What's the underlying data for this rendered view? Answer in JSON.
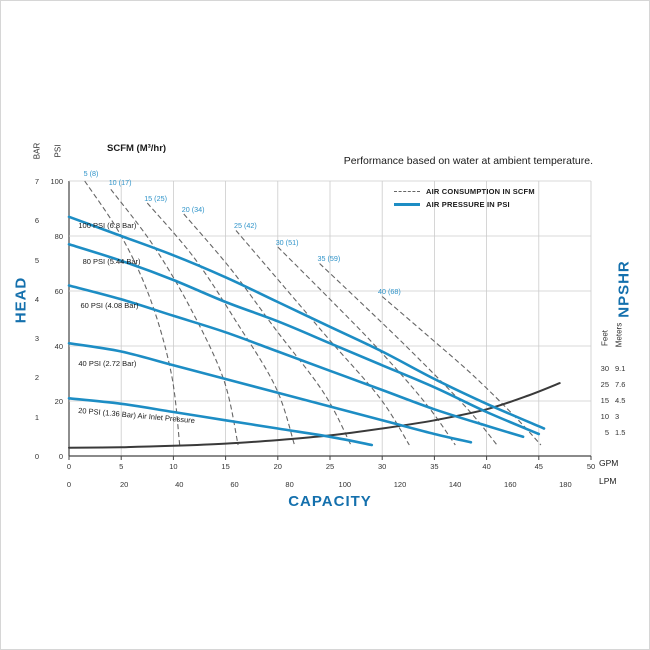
{
  "header": {
    "scfm_units_label": "SCFM (M³/hr)",
    "title": "Performance based on water at ambient temperature."
  },
  "legend": {
    "items": [
      {
        "label": "AIR CONSUMPTION IN SCFM",
        "style": "dashed"
      },
      {
        "label": "AIR PRESSURE IN PSI",
        "style": "solid"
      }
    ]
  },
  "colors": {
    "curve_blue": "#1d8dc4",
    "axis_label_blue": "#1470ad",
    "dashed_gray": "#666666",
    "npshr_dark": "#3a3a3a",
    "grid_gray": "#cccccc",
    "axis_dark": "#444444"
  },
  "axes": {
    "left": {
      "title": "HEAD",
      "bar_label": "BAR",
      "psi_label": "PSI",
      "bar_ticks": [
        "7",
        "6",
        "5",
        "4",
        "3",
        "2",
        "1",
        "0"
      ],
      "psi_ticks": [
        "100",
        "80",
        "60",
        "40",
        "20",
        "0"
      ]
    },
    "bottom": {
      "title": "CAPACITY",
      "gpm_label": "GPM",
      "lpm_label": "LPM",
      "gpm_ticks": [
        "0",
        "5",
        "10",
        "15",
        "20",
        "25",
        "30",
        "35",
        "40",
        "45",
        "50"
      ],
      "lpm_ticks": [
        "0",
        "20",
        "40",
        "60",
        "80",
        "100",
        "120",
        "140",
        "160",
        "180"
      ]
    },
    "right": {
      "title": "NPSHR",
      "feet_label": "Feet",
      "meters_label": "Meters",
      "rows": [
        {
          "feet": "30",
          "meters": "9.1"
        },
        {
          "feet": "25",
          "meters": "7.6"
        },
        {
          "feet": "15",
          "meters": "4.5"
        },
        {
          "feet": "10",
          "meters": "3"
        },
        {
          "feet": "5",
          "meters": "1.5"
        }
      ]
    }
  },
  "chart_data": {
    "type": "line",
    "title": "Performance based on water at ambient temperature.",
    "xlabel": "CAPACITY",
    "ylabel": "HEAD",
    "y2label": "NPSHR",
    "legend": [
      "AIR CONSUMPTION IN SCFM",
      "AIR PRESSURE IN PSI"
    ],
    "legend_position": "top-right",
    "grid": true,
    "x_units": {
      "primary": "GPM",
      "secondary": "LPM",
      "lpm_per_gpm": 3.7854
    },
    "y_units": {
      "primary": "PSI",
      "secondary": "BAR"
    },
    "xlim_gpm": [
      0,
      50
    ],
    "ylim_psi": [
      0,
      100
    ],
    "x_ticks_gpm": [
      0,
      5,
      10,
      15,
      20,
      25,
      30,
      35,
      40,
      45,
      50
    ],
    "x_ticks_lpm": [
      0,
      20,
      40,
      60,
      80,
      100,
      120,
      140,
      160,
      180
    ],
    "y_ticks_psi": [
      100,
      80,
      60,
      40,
      20,
      0
    ],
    "y_ticks_bar": [
      7,
      6,
      5,
      4,
      3,
      2,
      1,
      0
    ],
    "npshr_ticks_feet": [
      30,
      25,
      15,
      10,
      5
    ],
    "npshr_ticks_meters": [
      9.1,
      7.6,
      4.5,
      3,
      1.5
    ],
    "pressure_curves": [
      {
        "label": "100 PSI (6.8 Bar)",
        "label_at": [
          0.9,
          84
        ],
        "points": [
          [
            0,
            87
          ],
          [
            5,
            80
          ],
          [
            10,
            73
          ],
          [
            15,
            65
          ],
          [
            20,
            56
          ],
          [
            25,
            47
          ],
          [
            30,
            38
          ],
          [
            35,
            28
          ],
          [
            40,
            19
          ],
          [
            45.5,
            10
          ]
        ]
      },
      {
        "label": "80 PSI (5.44 Bar)",
        "label_at": [
          1.3,
          71
        ],
        "points": [
          [
            0,
            77
          ],
          [
            5,
            71
          ],
          [
            10,
            64
          ],
          [
            15,
            56
          ],
          [
            20,
            49
          ],
          [
            25,
            41
          ],
          [
            30,
            33
          ],
          [
            35,
            25
          ],
          [
            40,
            16
          ],
          [
            45,
            8
          ]
        ]
      },
      {
        "label": "60 PSI (4.08 Bar)",
        "label_at": [
          1.1,
          55
        ],
        "points": [
          [
            0,
            62
          ],
          [
            5,
            57
          ],
          [
            10,
            51
          ],
          [
            15,
            45
          ],
          [
            20,
            38
          ],
          [
            25,
            31
          ],
          [
            30,
            24
          ],
          [
            35,
            17
          ],
          [
            40,
            11
          ],
          [
            43.5,
            7
          ]
        ]
      },
      {
        "label": "40 PSI (2.72 Bar)",
        "label_at": [
          0.9,
          34
        ],
        "points": [
          [
            0,
            41
          ],
          [
            5,
            38
          ],
          [
            10,
            33
          ],
          [
            15,
            28
          ],
          [
            20,
            23
          ],
          [
            25,
            18
          ],
          [
            30,
            13
          ],
          [
            35,
            8
          ],
          [
            38.5,
            5
          ]
        ]
      },
      {
        "label": "20 PSI (1.36 Bar) Air Inlet Pressure",
        "label_at": [
          0.9,
          15
        ],
        "label_rotation_deg": 5,
        "points": [
          [
            0,
            21
          ],
          [
            5,
            19
          ],
          [
            10,
            16
          ],
          [
            15,
            13
          ],
          [
            20,
            10
          ],
          [
            25,
            7
          ],
          [
            29,
            4
          ]
        ]
      }
    ],
    "air_consumption_curves": [
      {
        "label": "5 (8)",
        "label_at": [
          1.4,
          103
        ],
        "points": [
          [
            1.5,
            100
          ],
          [
            5,
            80
          ],
          [
            7.8,
            57
          ],
          [
            9.8,
            30
          ],
          [
            10.6,
            4
          ]
        ]
      },
      {
        "label": "10 (17)",
        "label_at": [
          3.8,
          99.5
        ],
        "points": [
          [
            4,
            97
          ],
          [
            8,
            77
          ],
          [
            11.6,
            54
          ],
          [
            14.8,
            28
          ],
          [
            16.2,
            4
          ]
        ]
      },
      {
        "label": "15 (25)",
        "label_at": [
          7.2,
          94
        ],
        "points": [
          [
            7.5,
            92
          ],
          [
            12,
            72
          ],
          [
            16,
            49
          ],
          [
            19.8,
            25
          ],
          [
            21.6,
            4
          ]
        ]
      },
      {
        "label": "20 (34)",
        "label_at": [
          10.8,
          90
        ],
        "points": [
          [
            11,
            88
          ],
          [
            15.5,
            68
          ],
          [
            19.8,
            46
          ],
          [
            24.4,
            23
          ],
          [
            27,
            4
          ]
        ]
      },
      {
        "label": "25 (42)",
        "label_at": [
          15.8,
          84
        ],
        "points": [
          [
            16,
            82
          ],
          [
            20.5,
            62
          ],
          [
            25,
            42
          ],
          [
            29.8,
            21
          ],
          [
            32.6,
            4
          ]
        ]
      },
      {
        "label": "30 (51)",
        "label_at": [
          19.8,
          78
        ],
        "points": [
          [
            20,
            76
          ],
          [
            25,
            57
          ],
          [
            29.6,
            39
          ],
          [
            34.2,
            19
          ],
          [
            37,
            4
          ]
        ]
      },
      {
        "label": "35 (59)",
        "label_at": [
          23.8,
          72
        ],
        "points": [
          [
            24,
            70
          ],
          [
            29,
            52
          ],
          [
            33.6,
            35
          ],
          [
            38.2,
            17
          ],
          [
            41,
            4
          ]
        ]
      },
      {
        "label": "40 (68)",
        "label_at": [
          29.6,
          60
        ],
        "points": [
          [
            30,
            58
          ],
          [
            34.6,
            43
          ],
          [
            38.8,
            29
          ],
          [
            42.8,
            14
          ],
          [
            45.2,
            4
          ]
        ]
      }
    ],
    "npshr_curve": {
      "points_gpm_psi": [
        [
          0,
          3
        ],
        [
          5,
          3.2
        ],
        [
          10,
          3.7
        ],
        [
          15,
          4.5
        ],
        [
          20,
          5.8
        ],
        [
          25,
          7.5
        ],
        [
          30,
          10
        ],
        [
          35,
          13
        ],
        [
          40,
          17
        ],
        [
          44,
          22
        ],
        [
          47,
          26.5
        ]
      ]
    }
  }
}
